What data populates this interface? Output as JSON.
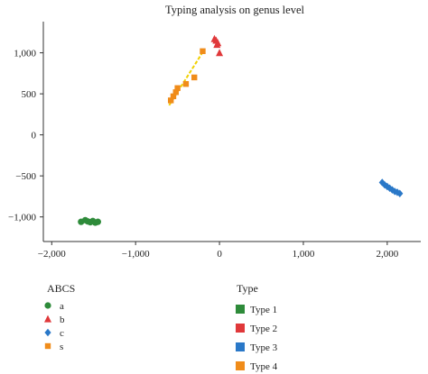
{
  "chart_data": {
    "type": "scatter",
    "title": "Typing analysis on genus level",
    "xlabel": "",
    "ylabel": "",
    "xlim": [
      -2100,
      2400
    ],
    "ylim": [
      -1300,
      1380
    ],
    "xticks": [
      -2000,
      -1000,
      0,
      1000,
      2000
    ],
    "xtick_labels": [
      "−2,000",
      "−1,000",
      "0",
      "1,000",
      "2,000"
    ],
    "yticks": [
      -1000,
      -500,
      0,
      500,
      1000
    ],
    "ytick_labels": [
      "−1,000",
      "−500",
      "0",
      "500",
      "1,000"
    ],
    "grid": false,
    "legend_shape": {
      "title": "ABCS",
      "entries": [
        {
          "label": "a",
          "marker": "circle",
          "color": "#2e8b3a"
        },
        {
          "label": "b",
          "marker": "triangle",
          "color": "#e0383a"
        },
        {
          "label": "c",
          "marker": "diamond",
          "color": "#2a78c8"
        },
        {
          "label": "s",
          "marker": "square",
          "color": "#f08c1a"
        }
      ]
    },
    "legend_color": {
      "title": "Type",
      "entries": [
        {
          "label": "Type 1",
          "color": "#2e8b3a"
        },
        {
          "label": "Type 2",
          "color": "#e0383a"
        },
        {
          "label": "Type 3",
          "color": "#2a78c8"
        },
        {
          "label": "Type 4",
          "color": "#f08c1a"
        }
      ]
    },
    "series": [
      {
        "marker": "circle",
        "color": "#2e8b3a",
        "x": [
          -1650,
          -1600,
          -1570,
          -1540,
          -1510,
          -1480,
          -1450
        ],
        "y": [
          -1060,
          -1040,
          -1055,
          -1065,
          -1050,
          -1070,
          -1060
        ]
      },
      {
        "marker": "triangle",
        "color": "#e0383a",
        "x": [
          -60,
          -40,
          -20,
          -30,
          0
        ],
        "y": [
          1170,
          1150,
          1120,
          1100,
          1000
        ]
      },
      {
        "marker": "diamond",
        "color": "#2a78c8",
        "x": [
          1940,
          1970,
          2000,
          2030,
          2060,
          2090,
          2120,
          2150
        ],
        "y": [
          -580,
          -610,
          -630,
          -650,
          -670,
          -690,
          -700,
          -715
        ]
      },
      {
        "marker": "square",
        "color": "#f08c1a",
        "x": [
          -580,
          -550,
          -520,
          -500,
          -400,
          -300,
          -200
        ],
        "y": [
          420,
          470,
          520,
          570,
          620,
          700,
          1020
        ]
      }
    ],
    "fit_lines": [
      {
        "color": "#f0d000",
        "x": [
          -600,
          -180
        ],
        "y": [
          360,
          1040
        ]
      },
      {
        "color": "#7a4fb0",
        "x": [
          1920,
          2160
        ],
        "y": [
          -560,
          -740
        ]
      }
    ]
  }
}
